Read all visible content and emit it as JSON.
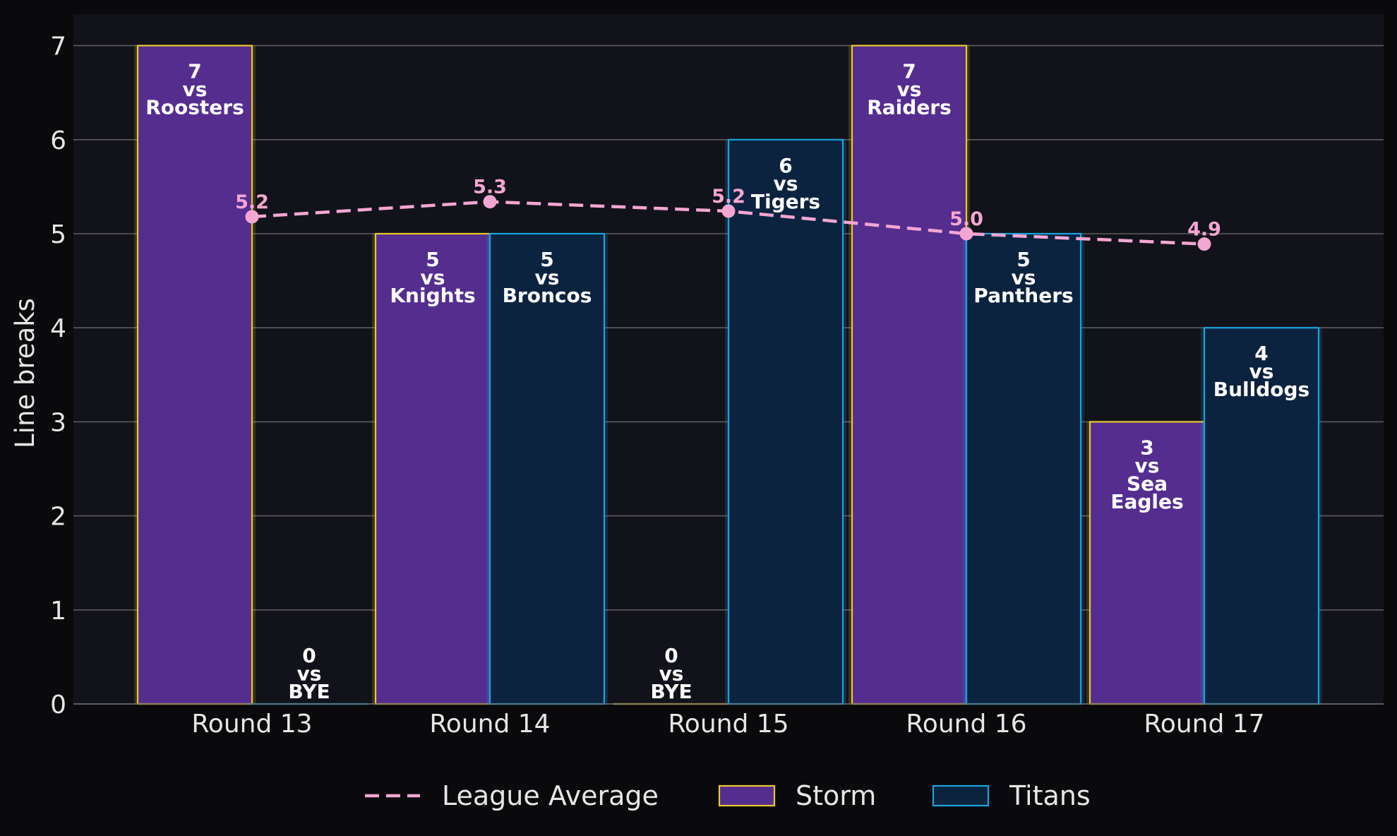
{
  "chart_data": {
    "type": "bar",
    "title": "",
    "xlabel": "",
    "ylabel": "Line breaks",
    "ylim": [
      0,
      7.3
    ],
    "yticks": [
      "0",
      "1",
      "2",
      "3",
      "4",
      "5",
      "6",
      "7"
    ],
    "grid": true,
    "legend_position": "bottom",
    "categories": [
      "Round 13",
      "Round 14",
      "Round 15",
      "Round 16",
      "Round 17"
    ],
    "series": [
      {
        "name": "Storm",
        "type": "bar",
        "values": [
          7,
          5,
          0,
          7,
          3
        ],
        "labels": [
          "7\nvs\nRoosters",
          "5\nvs\nKnights",
          "0\nvs\nBYE",
          "7\nvs\nRaiders",
          "3\nvs\nSea\nEagles"
        ],
        "fill": "#552d8f",
        "edge": "#e8c92c"
      },
      {
        "name": "Titans",
        "type": "bar",
        "values": [
          0,
          5,
          6,
          5,
          4
        ],
        "labels": [
          "0\nvs\nBYE",
          "5\nvs\nBroncos",
          "6\nvs\nTigers",
          "5\nvs\nPanthers",
          "4\nvs\nBulldogs"
        ],
        "fill": "#0c2340",
        "edge": "#1aa3dd"
      },
      {
        "name": "League Average",
        "type": "line",
        "values": [
          5.18,
          5.34,
          5.24,
          5.0,
          4.89
        ],
        "labels": [
          "5.2",
          "5.3",
          "5.2",
          "5.0",
          "4.9"
        ],
        "color": "#f4a6d3"
      }
    ]
  }
}
